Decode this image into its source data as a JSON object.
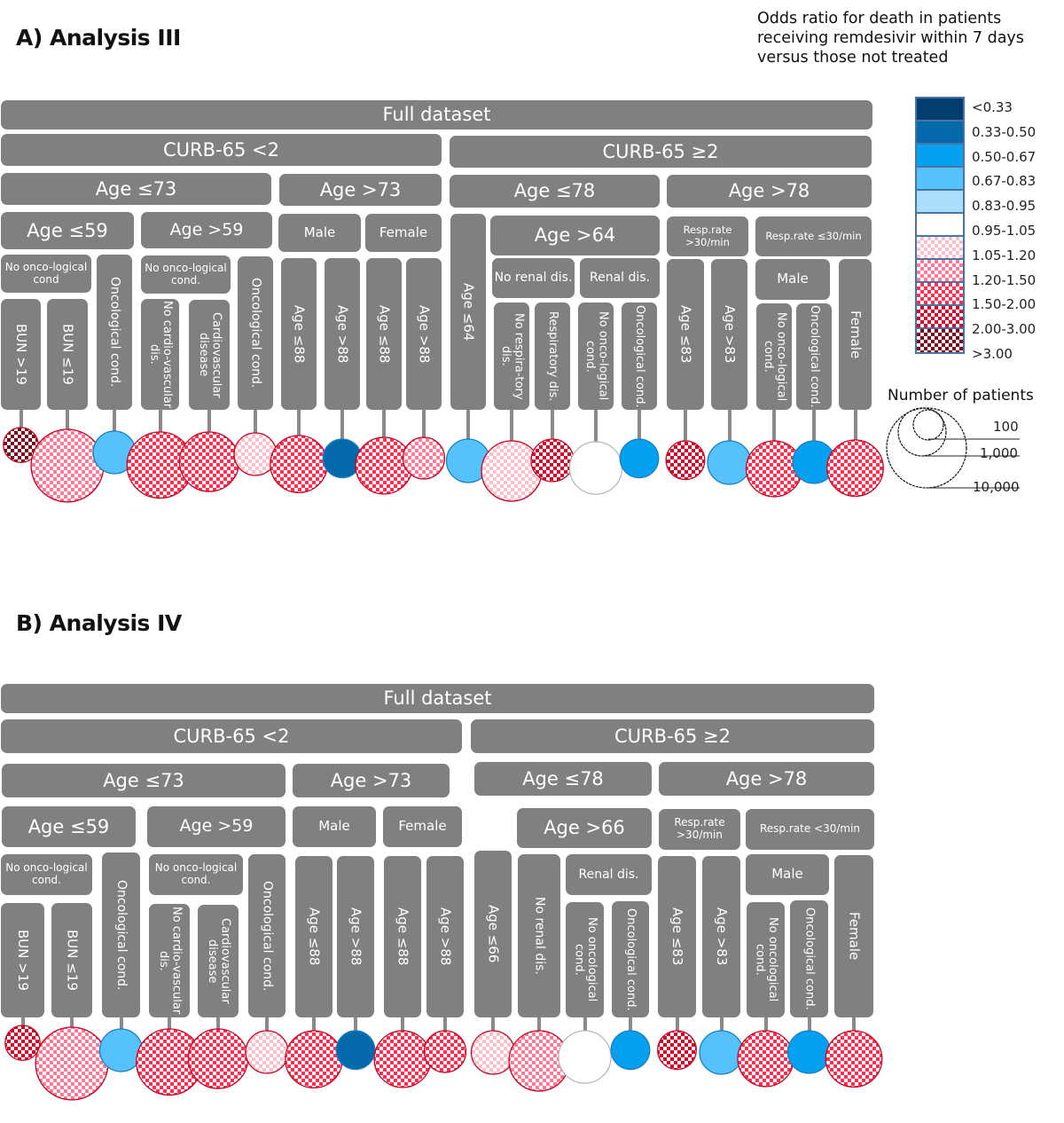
{
  "legend": {
    "title": "Odds ratio for death in patients receiving remdesivir within 7 days versus those not treated",
    "categories": [
      {
        "label": "<0.33",
        "color": "#023f6e",
        "pattern": "solid"
      },
      {
        "label": "0.33-0.50",
        "color": "#0369aa",
        "pattern": "solid"
      },
      {
        "label": "0.50-0.67",
        "color": "#05a0f0",
        "pattern": "solid"
      },
      {
        "label": "0.67-0.83",
        "color": "#55c2fc",
        "pattern": "solid"
      },
      {
        "label": "0.83-0.95",
        "color": "#aadefc",
        "pattern": "solid"
      },
      {
        "label": "0.95-1.05",
        "color": "#ffffff",
        "pattern": "solid"
      },
      {
        "label": "1.05-1.20",
        "color": "#ffc0ca",
        "pattern": "check"
      },
      {
        "label": "1.20-1.50",
        "color": "#ff7a92",
        "pattern": "check"
      },
      {
        "label": "1.50-2.00",
        "color": "#ff3050",
        "pattern": "check"
      },
      {
        "label": "2.00-3.00",
        "color": "#d00028",
        "pattern": "check"
      },
      {
        "label": ">3.00",
        "color": "#7a0018",
        "pattern": "check"
      }
    ],
    "size_title": "Number of patients",
    "size_levels": [
      "100",
      "1,000",
      "10,000"
    ]
  },
  "panels": [
    {
      "title": "A) Analysis III",
      "tree": {
        "full": "Full dataset",
        "curb_lt2": "CURB-65 <2",
        "curb_ge2": "CURB-65 ≥2",
        "age_le73": "Age ≤73",
        "age_gt73": "Age >73",
        "age_le78": "Age ≤78",
        "age_gt78": "Age >78",
        "age_le59": "Age ≤59",
        "age_gt59": "Age >59",
        "male": "Male",
        "female": "Female",
        "age_gt_mid": "Age >64",
        "resp_gt30": "Resp.rate >30/min",
        "resp_le30": "Resp.rate ≤30/min",
        "no_onc_1": "No onco-logical cond",
        "no_onc_2": "No onco-logical cond.",
        "no_renal": "No renal dis.",
        "renal": "Renal dis.",
        "male2": "Male"
      },
      "leaves": [
        {
          "label": "BUN >19",
          "or": ">3.00",
          "size": 700
        },
        {
          "label": "BUN ≤19",
          "or": "1.20-1.50",
          "size": 9000
        },
        {
          "label": "Oncological cond.",
          "or": "0.67-0.83",
          "size": 1400
        },
        {
          "label": "No cardio-vascular dis.",
          "or": "1.50-2.00",
          "size": 6500
        },
        {
          "label": "Cardiovascular disease",
          "or": "1.50-2.00",
          "size": 4500
        },
        {
          "label": "Oncological cond.",
          "or": "1.05-1.20",
          "size": 1400
        },
        {
          "label": "Age ≤88",
          "or": "1.50-2.00",
          "size": 3900
        },
        {
          "label": "Age >88",
          "or": "0.33-0.50",
          "size": 1000
        },
        {
          "label": "Age ≤88",
          "or": "1.50-2.00",
          "size": 3800
        },
        {
          "label": "Age >88",
          "or": "1.20-1.50",
          "size": 1300
        },
        {
          "label": "Age ≤64",
          "or": "0.67-0.83",
          "size": 1500
        },
        {
          "label": "No respira-tory dis.",
          "or": "1.05-1.20",
          "size": 4700
        },
        {
          "label": "Respiratory dis.",
          "or": "2.00-3.00",
          "size": 1400
        },
        {
          "label": "No onco-logical cond.",
          "or": "0.95-1.05",
          "size": 2900
        },
        {
          "label": "Oncological cond.",
          "or": "0.50-0.67",
          "size": 1000
        },
        {
          "label": "Age ≤83",
          "or": "2.00-3.00",
          "size": 1000
        },
        {
          "label": "Age >83",
          "or": "0.67-0.83",
          "size": 1500
        },
        {
          "label": "No onco-logical cond.",
          "or": "1.50-2.00",
          "size": 3600
        },
        {
          "label": "Oncological cond.",
          "or": "0.50-0.67",
          "size": 1400
        },
        {
          "label": "Female",
          "or": "1.50-2.00",
          "size": 3700
        }
      ]
    },
    {
      "title": "B) Analysis IV",
      "tree": {
        "full": "Full dataset",
        "curb_lt2": "CURB-65 <2",
        "curb_ge2": "CURB-65 ≥2",
        "age_le73": "Age ≤73",
        "age_gt73": "Age >73",
        "age_le78": "Age ≤78",
        "age_gt78": "Age >78",
        "age_le59": "Age ≤59",
        "age_gt59": "Age >59",
        "male": "Male",
        "female": "Female",
        "age_gt_mid": "Age >66",
        "resp_gt30": "Resp.rate >30/min",
        "resp_le30": "Resp.rate <30/min",
        "no_onc_1": "No onco-logical cond.",
        "no_onc_2": "No onco-logical cond.",
        "renal": "Renal dis.",
        "male2": "Male"
      },
      "leaves": [
        {
          "label": "BUN >19",
          "or": "2.00-3.00",
          "size": 700
        },
        {
          "label": "BUN ≤19",
          "or": "1.20-1.50",
          "size": 9000
        },
        {
          "label": "Oncological cond.",
          "or": "0.67-0.83",
          "size": 1400
        },
        {
          "label": "No cardio-vascular dis.",
          "or": "1.50-2.00",
          "size": 6500
        },
        {
          "label": "Cardiovascular disease",
          "or": "1.50-2.00",
          "size": 4500
        },
        {
          "label": "Oncological cond.",
          "or": "1.05-1.20",
          "size": 1400
        },
        {
          "label": "Age ≤88",
          "or": "1.50-2.00",
          "size": 3900
        },
        {
          "label": "Age >88",
          "or": "0.33-0.50",
          "size": 1000
        },
        {
          "label": "Age ≤88",
          "or": "1.50-2.00",
          "size": 3800
        },
        {
          "label": "Age >88",
          "or": "1.50-2.00",
          "size": 1300
        },
        {
          "label": "Age ≤66",
          "or": "1.05-1.20",
          "size": 1500
        },
        {
          "label": "No renal dis.",
          "or": "1.20-1.50",
          "size": 4700
        },
        {
          "label": "No oncological cond.",
          "or": "0.95-1.05",
          "size": 2900
        },
        {
          "label": "Oncological cond.",
          "or": "0.50-0.67",
          "size": 1000
        },
        {
          "label": "Age ≤83",
          "or": "2.00-3.00",
          "size": 1000
        },
        {
          "label": "Age >83",
          "or": "0.67-0.83",
          "size": 1500
        },
        {
          "label": "No oncological cond.",
          "or": "1.50-2.00",
          "size": 3600
        },
        {
          "label": "Oncological cond.",
          "or": "0.50-0.67",
          "size": 1400
        },
        {
          "label": "Female",
          "or": "1.50-2.00",
          "size": 3700
        }
      ]
    }
  ]
}
